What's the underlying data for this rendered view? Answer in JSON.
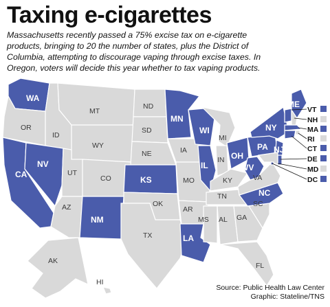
{
  "title": "Taxing e-cigarettes",
  "description_lines": [
    "Massachusetts recently passed a 75% excise tax on e-cigarette",
    "products, bringing to 20 the number of states, plus the District of",
    "Columbia, attempting to discourage vaping through excise taxes. In",
    "Oregon, voters will decide this year whether to tax vaping products."
  ],
  "colors": {
    "taxing": "#4a5cab",
    "not_taxing": "#d9d9d9"
  },
  "states": [
    {
      "id": "WA",
      "label": "WA",
      "taxing": true
    },
    {
      "id": "OR",
      "label": "OR",
      "taxing": false
    },
    {
      "id": "CA",
      "label": "CA",
      "taxing": true
    },
    {
      "id": "ID",
      "label": "ID",
      "taxing": false
    },
    {
      "id": "NV",
      "label": "NV",
      "taxing": true
    },
    {
      "id": "MT",
      "label": "MT",
      "taxing": false
    },
    {
      "id": "WY",
      "label": "WY",
      "taxing": false
    },
    {
      "id": "UT",
      "label": "UT",
      "taxing": false
    },
    {
      "id": "AZ",
      "label": "AZ",
      "taxing": false
    },
    {
      "id": "CO",
      "label": "CO",
      "taxing": false
    },
    {
      "id": "NM",
      "label": "NM",
      "taxing": true
    },
    {
      "id": "ND",
      "label": "ND",
      "taxing": false
    },
    {
      "id": "SD",
      "label": "SD",
      "taxing": false
    },
    {
      "id": "NE",
      "label": "NE",
      "taxing": false
    },
    {
      "id": "KS",
      "label": "KS",
      "taxing": true
    },
    {
      "id": "OK",
      "label": "OK",
      "taxing": false
    },
    {
      "id": "TX",
      "label": "TX",
      "taxing": false
    },
    {
      "id": "MN",
      "label": "MN",
      "taxing": true
    },
    {
      "id": "IA",
      "label": "IA",
      "taxing": false
    },
    {
      "id": "MO",
      "label": "MO",
      "taxing": false
    },
    {
      "id": "AR",
      "label": "AR",
      "taxing": false
    },
    {
      "id": "LA",
      "label": "LA",
      "taxing": true
    },
    {
      "id": "WI",
      "label": "WI",
      "taxing": true
    },
    {
      "id": "IL",
      "label": "IL",
      "taxing": true
    },
    {
      "id": "MI",
      "label": "MI",
      "taxing": false
    },
    {
      "id": "IN",
      "label": "IN",
      "taxing": false
    },
    {
      "id": "OH",
      "label": "OH",
      "taxing": true
    },
    {
      "id": "KY",
      "label": "KY",
      "taxing": false
    },
    {
      "id": "TN",
      "label": "TN",
      "taxing": false
    },
    {
      "id": "MS",
      "label": "MS",
      "taxing": false
    },
    {
      "id": "AL",
      "label": "AL",
      "taxing": false
    },
    {
      "id": "GA",
      "label": "GA",
      "taxing": false
    },
    {
      "id": "FL",
      "label": "FL",
      "taxing": false
    },
    {
      "id": "SC",
      "label": "SC",
      "taxing": false
    },
    {
      "id": "NC",
      "label": "NC",
      "taxing": true
    },
    {
      "id": "VA",
      "label": "VA",
      "taxing": false
    },
    {
      "id": "WV",
      "label": "WV",
      "taxing": true
    },
    {
      "id": "PA",
      "label": "PA",
      "taxing": true
    },
    {
      "id": "NY",
      "label": "NY",
      "taxing": true
    },
    {
      "id": "NJ",
      "label": "NJ",
      "taxing": true
    },
    {
      "id": "ME",
      "label": "ME",
      "taxing": true
    },
    {
      "id": "AK",
      "label": "AK",
      "taxing": false
    },
    {
      "id": "HI",
      "label": "HI",
      "taxing": false
    }
  ],
  "legend_states": [
    {
      "id": "VT",
      "label": "VT",
      "taxing": true
    },
    {
      "id": "NH",
      "label": "NH",
      "taxing": false
    },
    {
      "id": "MA",
      "label": "MA",
      "taxing": true
    },
    {
      "id": "RI",
      "label": "RI",
      "taxing": false
    },
    {
      "id": "CT",
      "label": "CT",
      "taxing": true
    },
    {
      "id": "DE",
      "label": "DE",
      "taxing": true
    },
    {
      "id": "MD",
      "label": "MD",
      "taxing": false
    },
    {
      "id": "DC",
      "label": "DC",
      "taxing": true
    }
  ],
  "source_lines": [
    "Source: Public Health Law Center",
    "Graphic: Stateline/TNS"
  ]
}
